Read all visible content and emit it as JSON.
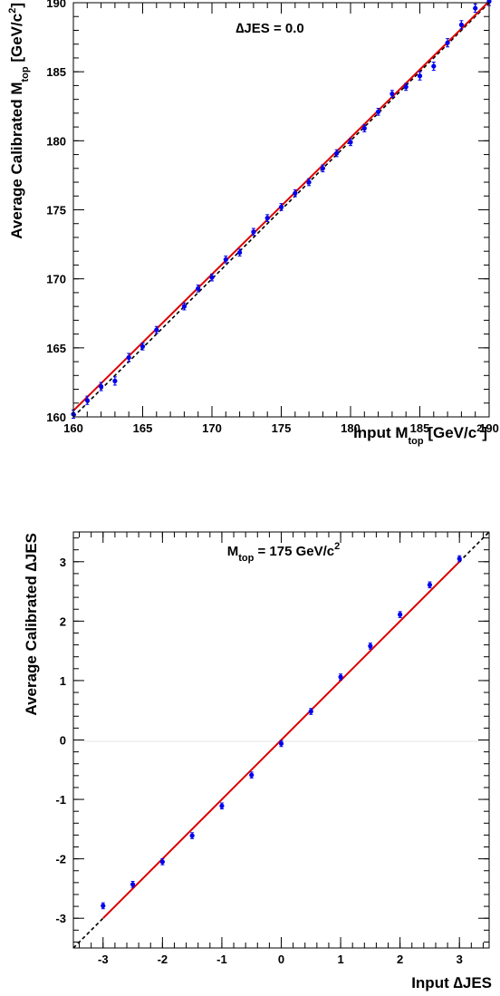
{
  "chart_data": [
    {
      "type": "scatter",
      "annotation": "∆JES = 0.0",
      "xlabel": {
        "main": "Input M",
        "sub": "top",
        "unit": "[GeV/c",
        "sup": "2",
        "close": "]"
      },
      "ylabel": {
        "main": "Average Calibrated M",
        "sub": "top",
        "unit": "[GeV/c",
        "sup": "2",
        "close": "]"
      },
      "xlim": [
        160,
        190
      ],
      "ylim": [
        160,
        190
      ],
      "xticks": [
        160,
        165,
        170,
        175,
        180,
        185,
        190
      ],
      "yticks": [
        160,
        165,
        170,
        175,
        180,
        185,
        190
      ],
      "points": {
        "x": [
          160,
          161,
          162,
          163,
          164,
          165,
          166,
          168,
          169,
          170,
          171,
          172,
          173,
          174,
          175,
          176,
          177,
          178,
          179,
          180,
          181,
          182,
          183,
          184,
          185,
          186,
          187,
          188,
          189,
          190
        ],
        "y": [
          160.2,
          161.2,
          162.2,
          162.6,
          164.3,
          165.1,
          166.3,
          168.0,
          169.3,
          170.1,
          171.4,
          171.9,
          173.4,
          174.4,
          175.2,
          176.2,
          177.0,
          178.0,
          179.1,
          179.9,
          180.9,
          182.1,
          183.4,
          183.9,
          184.7,
          185.4,
          187.1,
          188.4,
          189.6,
          190.1
        ],
        "err": [
          0.3,
          0.3,
          0.3,
          0.3,
          0.3,
          0.25,
          0.25,
          0.25,
          0.25,
          0.25,
          0.25,
          0.25,
          0.25,
          0.25,
          0.25,
          0.25,
          0.25,
          0.25,
          0.25,
          0.25,
          0.25,
          0.25,
          0.25,
          0.25,
          0.3,
          0.3,
          0.3,
          0.3,
          0.3,
          0.3
        ]
      },
      "fit": {
        "color": "#dd0000",
        "x0": 160,
        "y0": 160.45,
        "x1": 190,
        "y1": 190.1
      },
      "reference": "dashed black y = x",
      "colors": {
        "points": "#0000ee",
        "fit": "#dd0000",
        "reference": "#000000"
      }
    },
    {
      "type": "scatter",
      "annotation": {
        "main": "M",
        "sub": "top",
        "rest": " = 175 GeV/c",
        "sup": "2"
      },
      "xlabel": "Input ∆JES",
      "ylabel": "Average Calibrated ∆JES",
      "xlim": [
        -3.5,
        3.5
      ],
      "ylim": [
        -3.5,
        3.5
      ],
      "xticks": [
        "-3",
        "-2",
        "-1",
        "0",
        "1",
        "2",
        "3"
      ],
      "yticks": [
        "-3",
        "-2",
        "-1",
        "0",
        "1",
        "2",
        "3"
      ],
      "points": {
        "x": [
          -3,
          -2.5,
          -2,
          -1.5,
          -1,
          -0.5,
          0,
          0.5,
          1,
          1.5,
          2,
          2.5,
          3
        ],
        "y": [
          -2.79,
          -2.43,
          -2.05,
          -1.61,
          -1.11,
          -0.59,
          -0.06,
          0.48,
          1.06,
          1.58,
          2.11,
          2.61,
          3.05
        ],
        "err": [
          0.05,
          0.05,
          0.05,
          0.05,
          0.05,
          0.05,
          0.05,
          0.05,
          0.05,
          0.05,
          0.05,
          0.05,
          0.05
        ]
      },
      "fit": {
        "color": "#dd0000",
        "x0": -3,
        "y0": -3.0,
        "x1": 3,
        "y1": 3.0
      },
      "reference": "dashed black y = x",
      "colors": {
        "points": "#0000ee",
        "fit": "#dd0000",
        "reference": "#000000"
      }
    }
  ]
}
